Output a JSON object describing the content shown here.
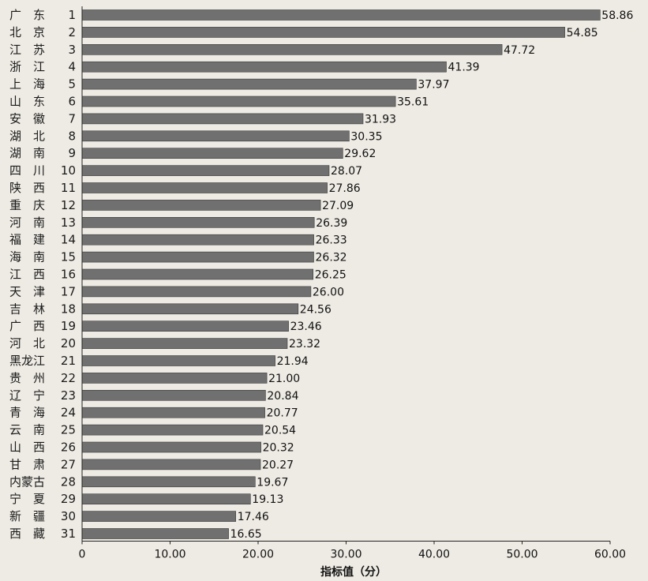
{
  "chart_data": {
    "type": "bar",
    "orientation": "horizontal",
    "xlabel": "指标值（分）",
    "xlim": [
      0,
      60
    ],
    "xticks": [
      "0",
      "10.00",
      "20.00",
      "30.00",
      "40.00",
      "50.00",
      "60.00"
    ],
    "grid": false,
    "bar_color": "#707070",
    "categories": [
      {
        "name": "广　东",
        "rank": "1",
        "value": 58.86
      },
      {
        "name": "北　京",
        "rank": "2",
        "value": 54.85
      },
      {
        "name": "江　苏",
        "rank": "3",
        "value": 47.72
      },
      {
        "name": "浙　江",
        "rank": "4",
        "value": 41.39
      },
      {
        "name": "上　海",
        "rank": "5",
        "value": 37.97
      },
      {
        "name": "山　东",
        "rank": "6",
        "value": 35.61
      },
      {
        "name": "安　徽",
        "rank": "7",
        "value": 31.93
      },
      {
        "name": "湖　北",
        "rank": "8",
        "value": 30.35
      },
      {
        "name": "湖　南",
        "rank": "9",
        "value": 29.62
      },
      {
        "name": "四　川",
        "rank": "10",
        "value": 28.07
      },
      {
        "name": "陕　西",
        "rank": "11",
        "value": 27.86
      },
      {
        "name": "重　庆",
        "rank": "12",
        "value": 27.09
      },
      {
        "name": "河　南",
        "rank": "13",
        "value": 26.39
      },
      {
        "name": "福　建",
        "rank": "14",
        "value": 26.33
      },
      {
        "name": "海　南",
        "rank": "15",
        "value": 26.32
      },
      {
        "name": "江　西",
        "rank": "16",
        "value": 26.25
      },
      {
        "name": "天　津",
        "rank": "17",
        "value": 26.0
      },
      {
        "name": "吉　林",
        "rank": "18",
        "value": 24.56
      },
      {
        "name": "广　西",
        "rank": "19",
        "value": 23.46
      },
      {
        "name": "河　北",
        "rank": "20",
        "value": 23.32
      },
      {
        "name": "黑龙江",
        "rank": "21",
        "value": 21.94
      },
      {
        "name": "贵　州",
        "rank": "22",
        "value": 21.0
      },
      {
        "name": "辽　宁",
        "rank": "23",
        "value": 20.84
      },
      {
        "name": "青　海",
        "rank": "24",
        "value": 20.77
      },
      {
        "name": "云　南",
        "rank": "25",
        "value": 20.54
      },
      {
        "name": "山　西",
        "rank": "26",
        "value": 20.32
      },
      {
        "name": "甘　肃",
        "rank": "27",
        "value": 20.27
      },
      {
        "name": "内蒙古",
        "rank": "28",
        "value": 19.67
      },
      {
        "name": "宁　夏",
        "rank": "29",
        "value": 19.13
      },
      {
        "name": "新　疆",
        "rank": "30",
        "value": 17.46
      },
      {
        "name": "西　藏",
        "rank": "31",
        "value": 16.65
      }
    ]
  }
}
